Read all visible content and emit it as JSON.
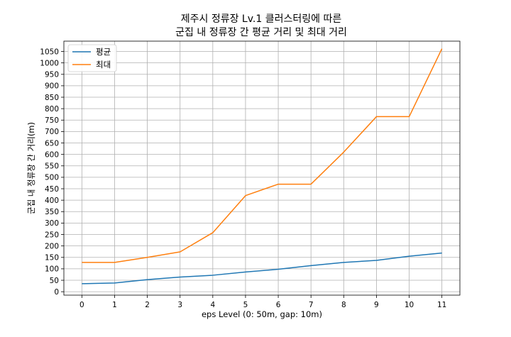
{
  "chart_data": {
    "type": "line",
    "title_lines": [
      "제주시 정류장 Lv.1 클러스터링에 따른",
      "군집 내 정류장 간 평균 거리 및 최대 거리"
    ],
    "xlabel": "eps Level (0: 50m, gap: 10m)",
    "ylabel": "군집 내 정류장 간 거리(m)",
    "x": [
      0,
      1,
      2,
      3,
      4,
      5,
      6,
      7,
      8,
      9,
      10,
      11
    ],
    "xticks": [
      "0",
      "1",
      "2",
      "3",
      "4",
      "5",
      "6",
      "7",
      "8",
      "9",
      "10",
      "11"
    ],
    "yticks": [
      "0",
      "50",
      "100",
      "150",
      "200",
      "250",
      "300",
      "350",
      "400",
      "450",
      "500",
      "550",
      "600",
      "650",
      "700",
      "750",
      "800",
      "850",
      "900",
      "950",
      "1000",
      "1050"
    ],
    "xlim": [
      -0.55,
      11.55
    ],
    "ylim": [
      -15,
      1095
    ],
    "grid": true,
    "legend_position": "top-left",
    "series": [
      {
        "name": "평균",
        "color": "#1f77b4",
        "values": [
          35,
          38,
          53,
          64,
          72,
          86,
          98,
          114,
          128,
          137,
          155,
          169
        ]
      },
      {
        "name": "최대",
        "color": "#ff7f0e",
        "values": [
          128,
          128,
          150,
          174,
          258,
          420,
          470,
          470,
          610,
          765,
          765,
          1062
        ]
      }
    ]
  }
}
